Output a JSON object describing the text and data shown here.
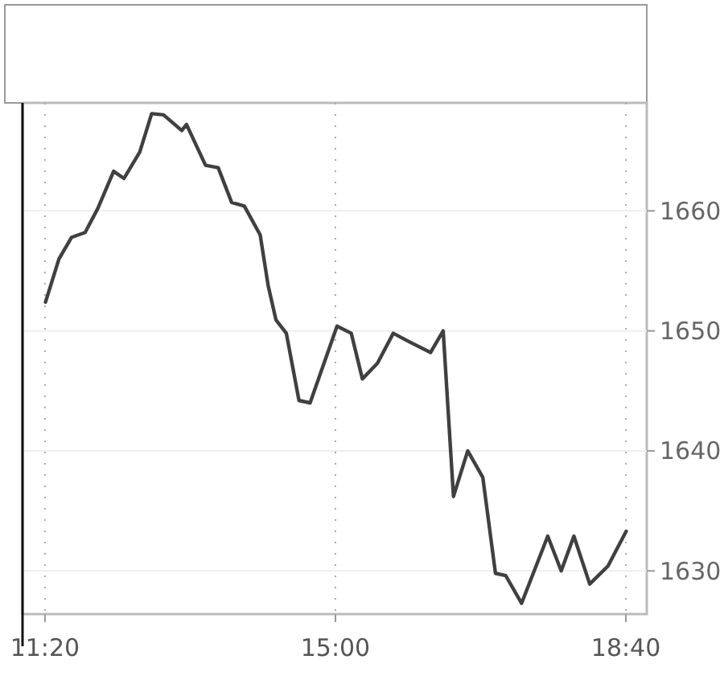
{
  "chart_data": {
    "type": "line",
    "color": "#404040",
    "grid": true,
    "line_style": "solid",
    "marker": "none",
    "x": [
      11.34,
      11.51,
      11.67,
      11.84,
      12.0,
      12.2,
      12.33,
      12.53,
      12.68,
      12.83,
      13.06,
      13.12,
      13.36,
      13.52,
      13.69,
      13.85,
      14.05,
      14.15,
      14.25,
      14.38,
      14.54,
      14.68,
      15.02,
      15.2,
      15.34,
      15.53,
      15.73,
      15.93,
      16.2,
      16.36,
      16.49,
      16.67,
      16.86,
      17.02,
      17.15,
      17.35,
      17.68,
      17.85,
      18.01,
      18.21,
      18.44,
      18.67
    ],
    "values": [
      1652.4,
      1656,
      1657.8,
      1658.2,
      1660.2,
      1663.3,
      1662.7,
      1664.9,
      1668.1,
      1668,
      1666.7,
      1667.2,
      1663.8,
      1663.6,
      1660.7,
      1660.4,
      1658,
      1653.8,
      1650.9,
      1649.8,
      1644.2,
      1644,
      1650.4,
      1649.8,
      1646,
      1647.3,
      1649.8,
      1649.1,
      1648.2,
      1650,
      1636.2,
      1640,
      1637.8,
      1629.8,
      1629.6,
      1627.3,
      1632.9,
      1630,
      1632.9,
      1628.9,
      1630.4,
      1633.3
    ],
    "xlim": [
      11.05,
      18.93
    ],
    "ylim": [
      1626.4,
      1669
    ],
    "xticks": [
      {
        "value": 11.3333,
        "label": "11:20"
      },
      {
        "value": 15,
        "label": "15:00"
      },
      {
        "value": 18.6667,
        "label": "18:40"
      }
    ],
    "yticks": [
      1630,
      1640,
      1650,
      1660
    ]
  }
}
